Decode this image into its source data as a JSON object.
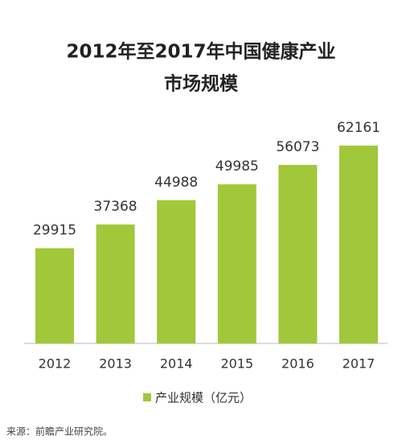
{
  "chart_data": {
    "type": "bar",
    "title": [
      "2012年至2017年中国健康产业",
      "市场规模"
    ],
    "categories": [
      "2012",
      "2013",
      "2014",
      "2015",
      "2016",
      "2017"
    ],
    "series": [
      {
        "name": "产业规模（亿元）",
        "color": "#a0c83a",
        "values": [
          29915,
          37368,
          44988,
          49985,
          56073,
          62161
        ]
      }
    ],
    "source": "来源：前瞻产业研究院。"
  }
}
